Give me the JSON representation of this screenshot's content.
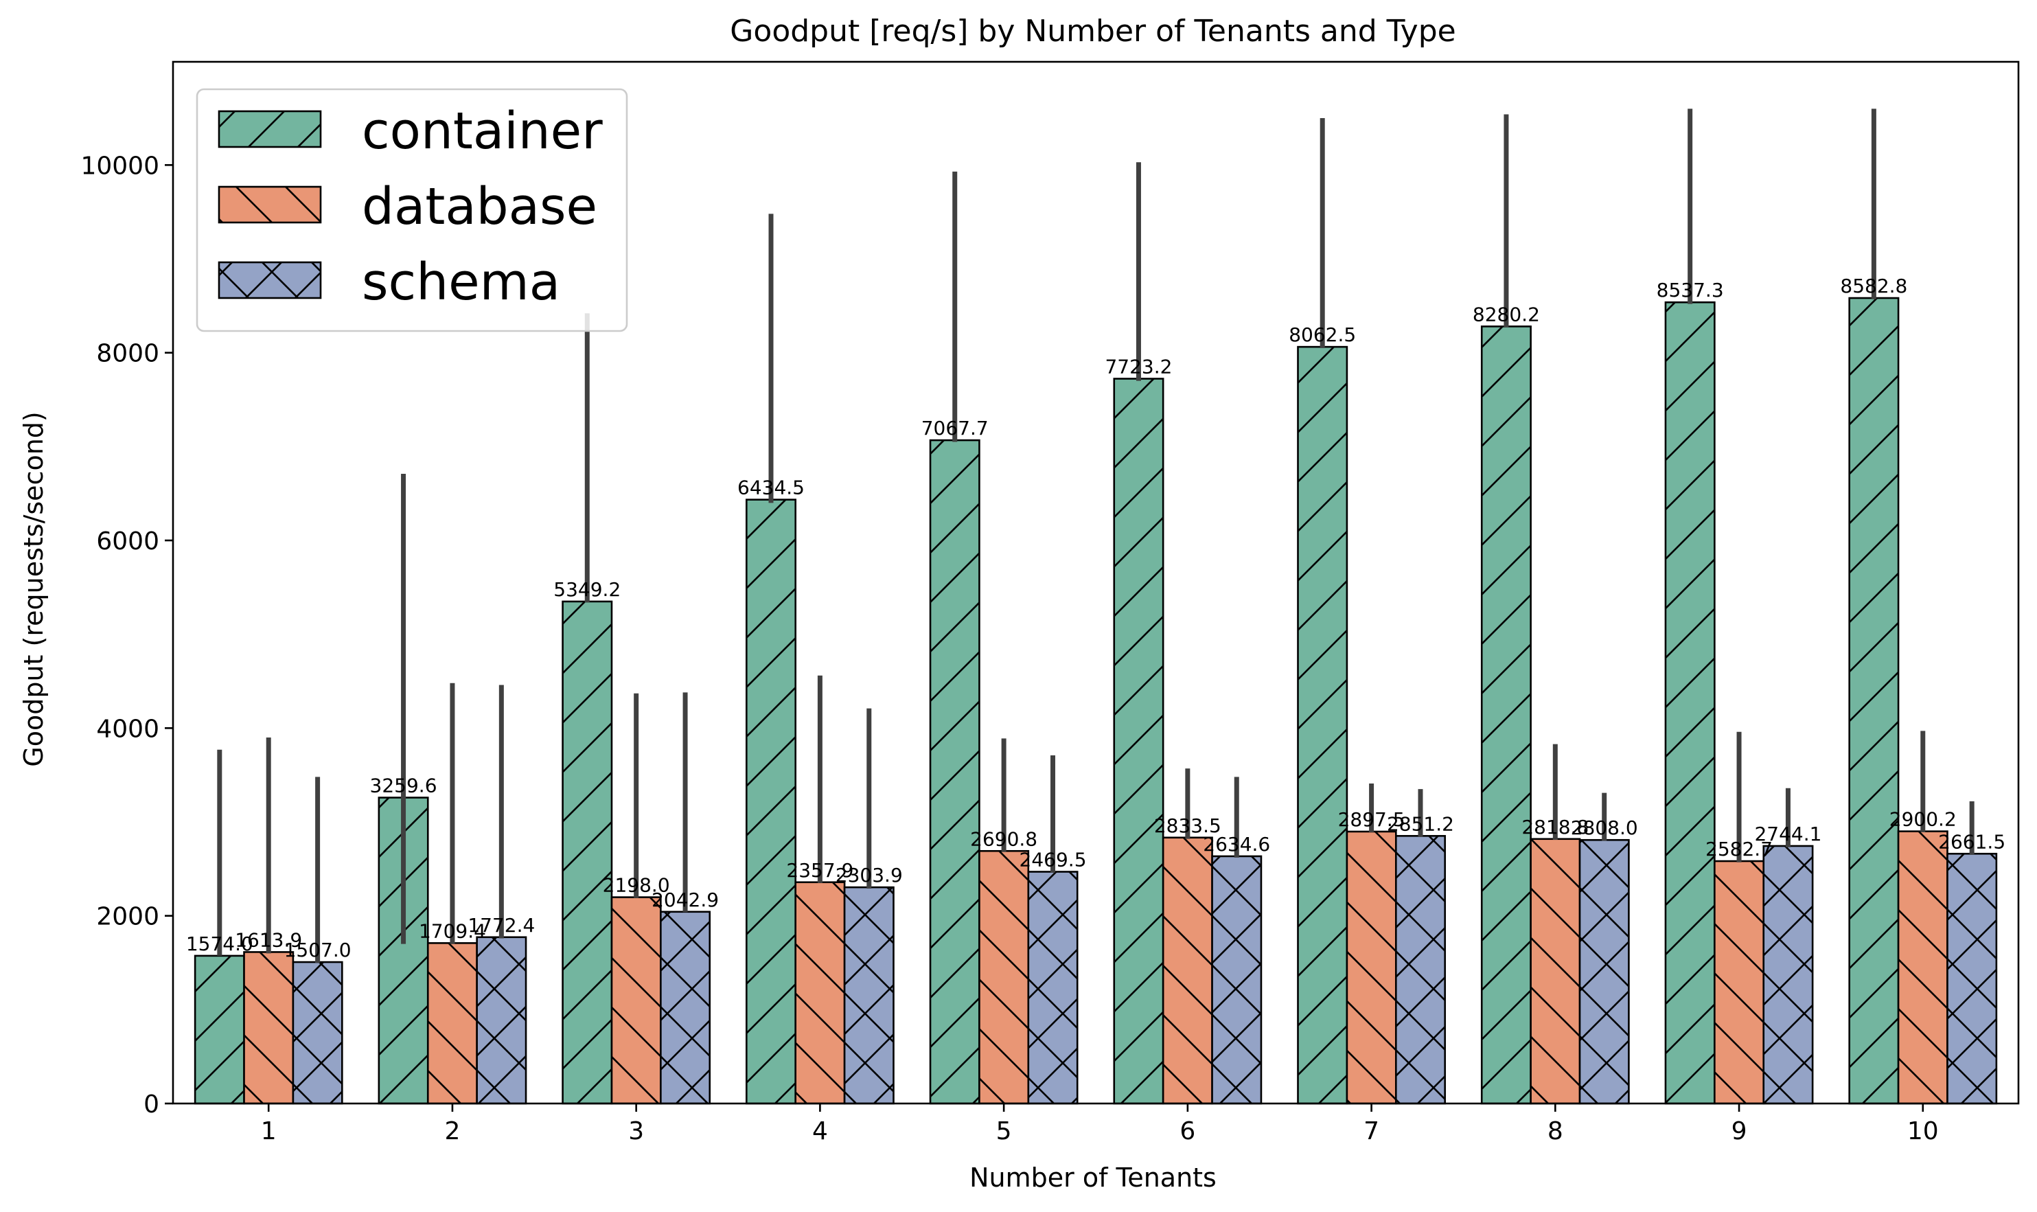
{
  "chart_data": {
    "type": "bar",
    "title": "Goodput [req/s] by Number of Tenants and Type",
    "xlabel": "Number of Tenants",
    "ylabel": "Goodput (requests/second)",
    "categories": [
      "1",
      "2",
      "3",
      "4",
      "5",
      "6",
      "7",
      "8",
      "9",
      "10"
    ],
    "ylim": [
      0,
      11100
    ],
    "yticks": [
      0,
      2000,
      4000,
      6000,
      8000,
      10000
    ],
    "ytick_labels": [
      "0",
      "2000",
      "4000",
      "6000",
      "8000",
      "10000"
    ],
    "legend_position": "top-left",
    "grid": false,
    "series": [
      {
        "name": "container",
        "color": "#73b59f",
        "hatch": "/",
        "values": [
          1574.0,
          3259.6,
          5349.2,
          6434.5,
          7067.7,
          7723.2,
          8062.5,
          8280.2,
          8537.3,
          8582.8
        ],
        "value_labels": [
          "1574.0",
          "3259.6",
          "5349.2",
          "6434.5",
          "7067.7",
          "7723.2",
          "8062.5",
          "8280.2",
          "8537.3",
          "8582.8"
        ],
        "err_low": [
          1574,
          1700,
          5340,
          6400,
          7050,
          7700,
          8050,
          8270,
          8520,
          8570
        ],
        "err_high": [
          3770,
          6710,
          8420,
          9480,
          9930,
          10030,
          10500,
          10540,
          10600,
          10600
        ]
      },
      {
        "name": "database",
        "color": "#e99675",
        "hatch": "\\",
        "values": [
          1613.9,
          1709.4,
          2198.0,
          2357.9,
          2690.8,
          2833.5,
          2897.5,
          2818.8,
          2582.7,
          2900.2
        ],
        "value_labels": [
          "1613.9",
          "1709.4",
          "2198.0",
          "2357.9",
          "2690.8",
          "2833.5",
          "2897.5",
          "2818.8",
          "2582.7",
          "2900.2"
        ],
        "err_low": [
          1600,
          1700,
          2190,
          2350,
          2680,
          2820,
          2890,
          2810,
          2570,
          2890
        ],
        "err_high": [
          3900,
          4480,
          4370,
          4560,
          3890,
          3570,
          3410,
          3830,
          3960,
          3970
        ]
      },
      {
        "name": "schema",
        "color": "#94a3c6",
        "hatch": "x",
        "values": [
          1507.0,
          1772.4,
          2042.9,
          2303.9,
          2469.5,
          2634.6,
          2851.2,
          2808.0,
          2744.1,
          2661.5
        ],
        "value_labels": [
          "1507.0",
          "1772.4",
          "2042.9",
          "2303.9",
          "2469.5",
          "2634.6",
          "2851.2",
          "2808.0",
          "2744.1",
          "2661.5"
        ],
        "err_low": [
          1500,
          1760,
          2040,
          2290,
          2460,
          2620,
          2840,
          2800,
          2730,
          2650
        ],
        "err_high": [
          3480,
          4460,
          4380,
          4210,
          3710,
          3480,
          3350,
          3310,
          3360,
          3220
        ]
      }
    ]
  }
}
